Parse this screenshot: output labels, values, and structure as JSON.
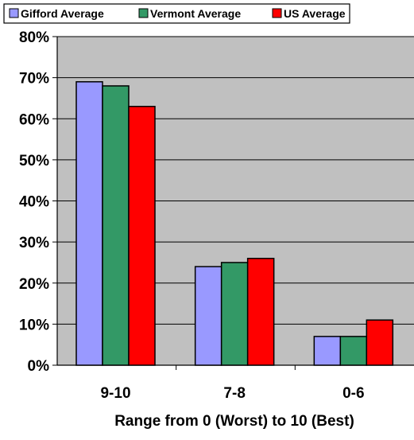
{
  "chart_data": {
    "type": "bar",
    "categories": [
      "9-10",
      "7-8",
      "0-6"
    ],
    "series": [
      {
        "name": "Gifford Average",
        "color": "#9999ff",
        "values": [
          69,
          24,
          7
        ]
      },
      {
        "name": "Vermont Average",
        "color": "#339966",
        "values": [
          68,
          25,
          7
        ]
      },
      {
        "name": "US Average",
        "color": "#ff0000",
        "values": [
          63,
          26,
          11
        ]
      }
    ],
    "xlabel": "Range from 0 (Worst) to 10 (Best)",
    "ylabel": "",
    "ylim": [
      0,
      80
    ],
    "yticks": [
      "0%",
      "10%",
      "20%",
      "30%",
      "40%",
      "50%",
      "60%",
      "70%",
      "80%"
    ],
    "grid": true,
    "plot_background": "#c0c0c0",
    "legend_position": "top-left"
  }
}
